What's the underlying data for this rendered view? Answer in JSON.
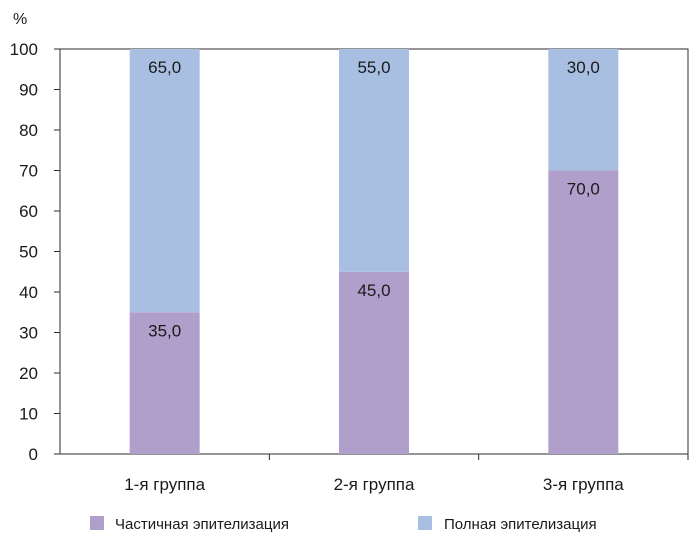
{
  "chart_data": {
    "type": "bar",
    "stacked": true,
    "unit": "%",
    "categories": [
      "1-я группа",
      "2-я группа",
      "3-я группа"
    ],
    "series": [
      {
        "name": "Частичная эпителизация",
        "color": "#b19fcb",
        "values": [
          35.0,
          45.0,
          70.0
        ],
        "labels": [
          "35,0",
          "45,0",
          "70,0"
        ]
      },
      {
        "name": "Полная эпителизация",
        "color": "#a8bfe2",
        "values": [
          65.0,
          55.0,
          30.0
        ],
        "labels": [
          "65,0",
          "55,0",
          "30,0"
        ]
      }
    ],
    "ylim": [
      0,
      100
    ],
    "yticks": [
      "0",
      "10",
      "20",
      "30",
      "40",
      "50",
      "60",
      "70",
      "80",
      "90",
      "100"
    ],
    "grid": false,
    "legend_position": "bottom"
  }
}
